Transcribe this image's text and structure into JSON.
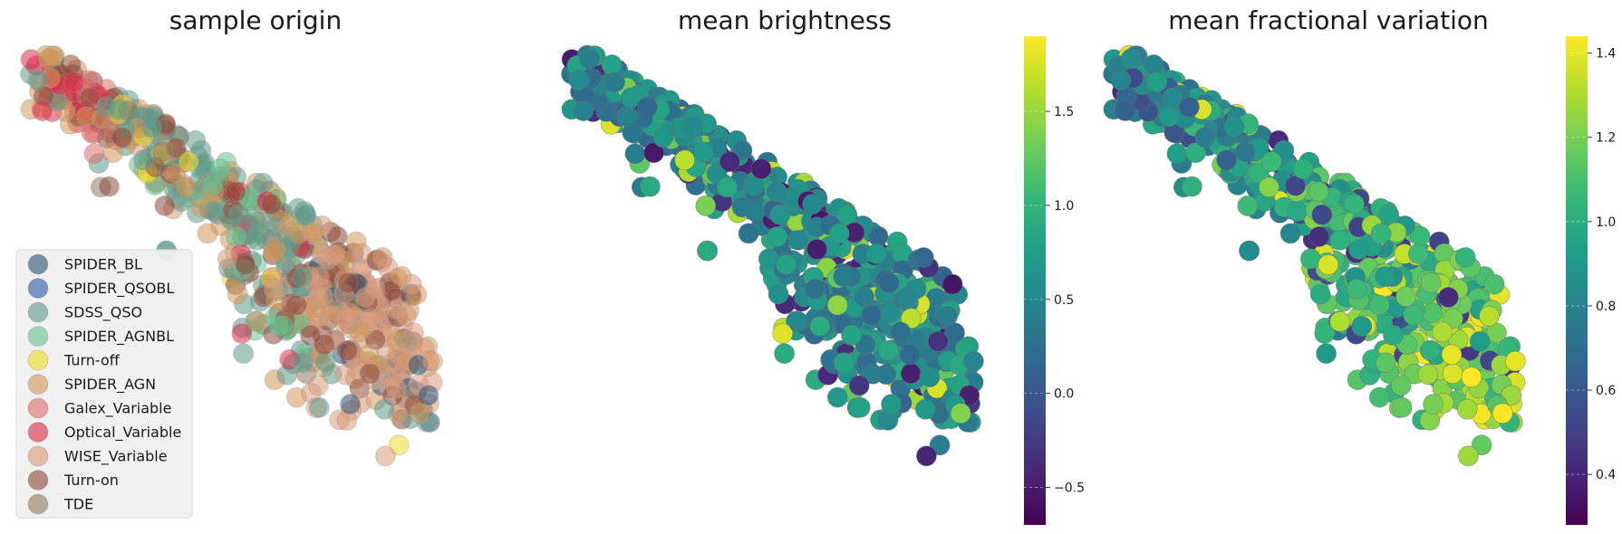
{
  "chart_data": [
    {
      "type": "scatter",
      "title": "sample origin",
      "xlabel": "",
      "ylabel": "",
      "grid": false,
      "legend_placement": "lower-left",
      "series": [
        {
          "name": "SPIDER_BL",
          "color": "#2e5273"
        },
        {
          "name": "SPIDER_QSOBL",
          "color": "#2a5caa"
        },
        {
          "name": "SDSS_QSO",
          "color": "#5f9a8b"
        },
        {
          "name": "SPIDER_AGNBL",
          "color": "#66c48e"
        },
        {
          "name": "Turn-off",
          "color": "#ecdc24"
        },
        {
          "name": "SPIDER_AGN",
          "color": "#d2975a"
        },
        {
          "name": "Galex_Variable",
          "color": "#de6b6b"
        },
        {
          "name": "Optical_Variable",
          "color": "#dc2d48"
        },
        {
          "name": "WISE_Variable",
          "color": "#d99b7a"
        },
        {
          "name": "Turn-on",
          "color": "#8e4a3a"
        },
        {
          "name": "TDE",
          "color": "#8e7a5f"
        }
      ]
    },
    {
      "type": "scatter",
      "title": "mean brightness",
      "xlabel": "",
      "ylabel": "",
      "grid": false,
      "colormap": "viridis",
      "colorbar": {
        "min": -0.7,
        "max": 1.9,
        "ticks": [
          -0.5,
          0.0,
          0.5,
          1.0,
          1.5
        ],
        "tick_labels": [
          "−0.5",
          "0.0",
          "0.5",
          "1.0",
          "1.5"
        ]
      }
    },
    {
      "type": "scatter",
      "title": "mean fractional variation",
      "xlabel": "",
      "ylabel": "",
      "grid": false,
      "colormap": "viridis",
      "colorbar": {
        "min": 0.28,
        "max": 1.44,
        "ticks": [
          0.4,
          0.6,
          0.8,
          1.0,
          1.2,
          1.4
        ],
        "tick_labels": [
          "0.4",
          "0.6",
          "0.8",
          "1.0",
          "1.2",
          "1.4"
        ]
      }
    }
  ]
}
